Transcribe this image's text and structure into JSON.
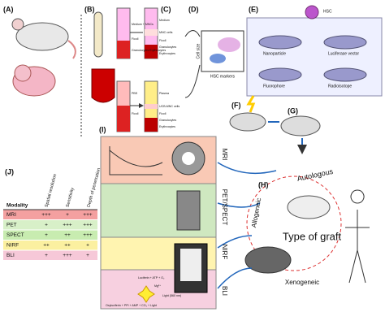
{
  "panels": {
    "a": "(A)",
    "b": "(B)",
    "c": "(C)",
    "d": "(D)",
    "e": "(E)",
    "f": "(F)",
    "g": "(G)",
    "h": "(H)",
    "i": "(I)",
    "j": "(J)"
  },
  "tubes": {
    "upper_b": [
      "Medium + MNCs",
      "Ficoll",
      "Granulocytes Erythrocytes"
    ],
    "upper_c": [
      "Medium",
      "MNC cells",
      "Ficoll",
      "Granulocytes",
      "Erythrocytes"
    ],
    "lower_b": [
      "PBS",
      "Ficoll"
    ],
    "lower_c": [
      "Plasma",
      "UCB-MNC cells",
      "Ficoll",
      "Granulocytes",
      "Erythrocytes"
    ]
  },
  "flow": {
    "y_axis": "Cell size",
    "x_axis": "HSC markers"
  },
  "labeling": {
    "cell": "HSC",
    "items": [
      "Nanoparticle",
      "Luciferase vector",
      "Fluorophore",
      "Radioisotope"
    ]
  },
  "graft": {
    "title": "Type of graft",
    "autologous": "Autologous",
    "allogeneic": "Allogeneic",
    "xenogeneic": "Xenogeneic"
  },
  "modalities": [
    "MRI",
    "PET/SPECT",
    "NIRF",
    "BLI"
  ],
  "imaging": {
    "reaction": "Luciferin + ATP + O₂",
    "products": "Oxyluciferin + PPi + AMP + CO₂ + Light",
    "light": "Light (560 nm)",
    "cofactor": "Mg²⁺"
  },
  "table": {
    "header": [
      "Modality",
      "Spatial resolution",
      "Sensitivity",
      "Depth of penetration"
    ],
    "rows": [
      [
        "MRI",
        "+++",
        "+",
        "+++"
      ],
      [
        "PET",
        "+",
        "+++",
        "+++"
      ],
      [
        "SPECT",
        "+",
        "++",
        "+++"
      ],
      [
        "NIRF",
        "++",
        "++",
        "+"
      ],
      [
        "BLI",
        "+",
        "+++",
        "+"
      ]
    ]
  }
}
